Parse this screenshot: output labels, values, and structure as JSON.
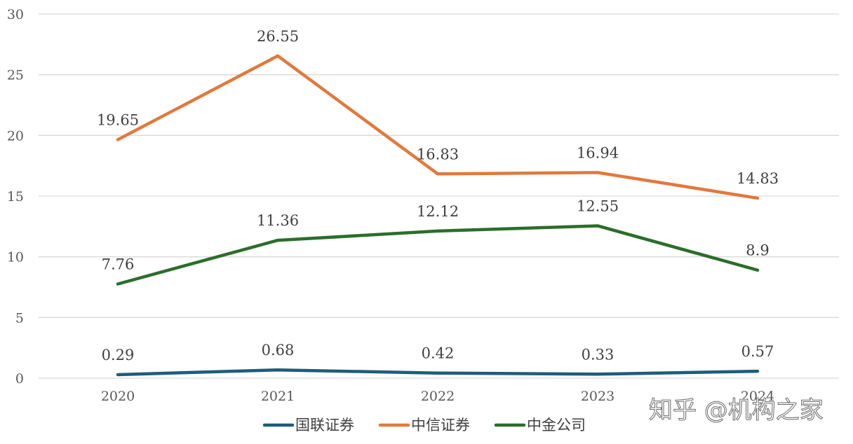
{
  "chart_data": {
    "type": "line",
    "categories": [
      "2020",
      "2021",
      "2022",
      "2023",
      "2024"
    ],
    "ylim": [
      0,
      30
    ],
    "yticks": [
      "0",
      "5",
      "10",
      "15",
      "20",
      "25",
      "30"
    ],
    "grid": true,
    "legend_position": "bottom",
    "series": [
      {
        "name": "国联证券",
        "color": "#1f5c7a",
        "values": [
          0.29,
          0.68,
          0.42,
          0.33,
          0.57
        ],
        "labels": [
          "0.29",
          "0.68",
          "0.42",
          "0.33",
          "0.57"
        ]
      },
      {
        "name": "中信证券",
        "color": "#e07a3c",
        "values": [
          19.65,
          26.55,
          16.83,
          16.94,
          14.83
        ],
        "labels": [
          "19.65",
          "26.55",
          "16.83",
          "16.94",
          "14.83"
        ]
      },
      {
        "name": "中金公司",
        "color": "#2a6e2a",
        "values": [
          7.76,
          11.36,
          12.12,
          12.55,
          8.9
        ],
        "labels": [
          "7.76",
          "11.36",
          "12.12",
          "12.55",
          "8.9"
        ]
      }
    ]
  },
  "watermark": {
    "text": "知乎 @机构之家"
  }
}
